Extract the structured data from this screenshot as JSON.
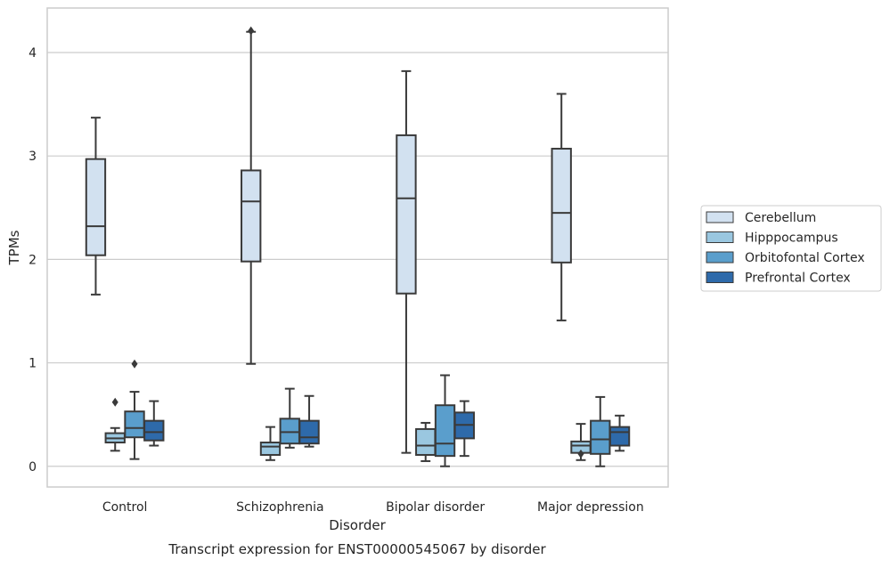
{
  "chart_data": {
    "type": "box",
    "title": "Transcript expression for ENST00000545067 by disorder",
    "xlabel": "Disorder",
    "ylabel": "TPMs",
    "ylim": [
      -0.2,
      4.43
    ],
    "yticks": [
      0,
      1,
      2,
      3,
      4
    ],
    "grid": "horizontal",
    "legend_position": "right",
    "categories": [
      "Control",
      "Schizophrenia",
      "Bipolar disorder",
      "Major depression"
    ],
    "series": [
      {
        "name": "Cerebellum",
        "color": "#d2e1f0",
        "boxes": [
          {
            "whisker_low": 1.66,
            "q1": 2.04,
            "median": 2.32,
            "q3": 2.97,
            "whisker_high": 3.37,
            "outliers": []
          },
          {
            "whisker_low": 0.99,
            "q1": 1.98,
            "median": 2.56,
            "q3": 2.86,
            "whisker_high": 4.2,
            "outliers": [
              4.21
            ]
          },
          {
            "whisker_low": 0.13,
            "q1": 1.67,
            "median": 2.59,
            "q3": 3.2,
            "whisker_high": 3.82,
            "outliers": []
          },
          {
            "whisker_low": 1.41,
            "q1": 1.97,
            "median": 2.45,
            "q3": 3.07,
            "whisker_high": 3.6,
            "outliers": []
          }
        ]
      },
      {
        "name": "Hipppocampus",
        "color": "#9ac7e0",
        "boxes": [
          {
            "whisker_low": 0.15,
            "q1": 0.23,
            "median": 0.27,
            "q3": 0.32,
            "whisker_high": 0.37,
            "outliers": [
              0.62
            ]
          },
          {
            "whisker_low": 0.06,
            "q1": 0.11,
            "median": 0.19,
            "q3": 0.23,
            "whisker_high": 0.38,
            "outliers": []
          },
          {
            "whisker_low": 0.05,
            "q1": 0.11,
            "median": 0.2,
            "q3": 0.36,
            "whisker_high": 0.42,
            "outliers": []
          },
          {
            "whisker_low": 0.06,
            "q1": 0.13,
            "median": 0.2,
            "q3": 0.24,
            "whisker_high": 0.41,
            "outliers": [
              0.12
            ]
          }
        ]
      },
      {
        "name": "Orbitofontal Cortex",
        "color": "#5a9ecc",
        "boxes": [
          {
            "whisker_low": 0.07,
            "q1": 0.28,
            "median": 0.37,
            "q3": 0.53,
            "whisker_high": 0.72,
            "outliers": [
              0.99
            ]
          },
          {
            "whisker_low": 0.18,
            "q1": 0.22,
            "median": 0.33,
            "q3": 0.46,
            "whisker_high": 0.75,
            "outliers": []
          },
          {
            "whisker_low": 0.0,
            "q1": 0.1,
            "median": 0.22,
            "q3": 0.59,
            "whisker_high": 0.88,
            "outliers": []
          },
          {
            "whisker_low": 0.0,
            "q1": 0.12,
            "median": 0.26,
            "q3": 0.44,
            "whisker_high": 0.67,
            "outliers": []
          }
        ]
      },
      {
        "name": "Prefrontal Cortex",
        "color": "#2e6aaa",
        "boxes": [
          {
            "whisker_low": 0.2,
            "q1": 0.25,
            "median": 0.33,
            "q3": 0.44,
            "whisker_high": 0.63,
            "outliers": []
          },
          {
            "whisker_low": 0.19,
            "q1": 0.22,
            "median": 0.28,
            "q3": 0.44,
            "whisker_high": 0.68,
            "outliers": []
          },
          {
            "whisker_low": 0.1,
            "q1": 0.27,
            "median": 0.4,
            "q3": 0.52,
            "whisker_high": 0.63,
            "outliers": []
          },
          {
            "whisker_low": 0.15,
            "q1": 0.2,
            "median": 0.33,
            "q3": 0.38,
            "whisker_high": 0.49,
            "outliers": []
          }
        ]
      }
    ]
  }
}
